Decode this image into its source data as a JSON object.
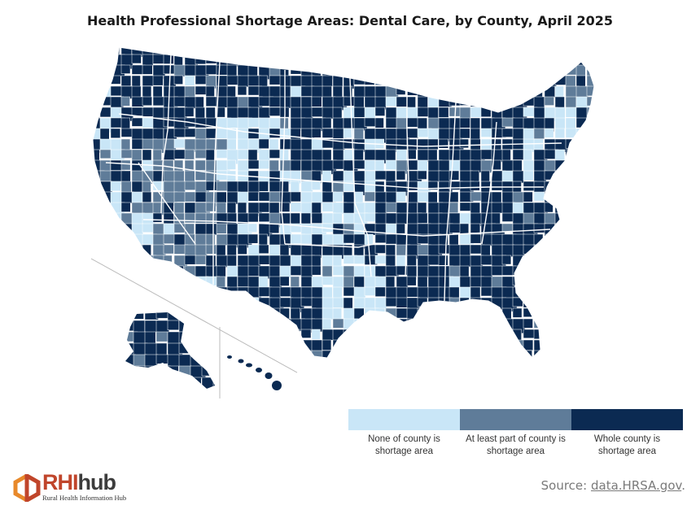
{
  "title": "Health Professional Shortage Areas: Dental Care, by County, April 2025",
  "legend": [
    {
      "label_line1": "None of county is",
      "label_line2": "shortage area",
      "color": "#c9e6f7"
    },
    {
      "label_line1": "At least part of county is",
      "label_line2": "shortage area",
      "color": "#5f7c99"
    },
    {
      "label_line1": "Whole county is",
      "label_line2": "shortage area",
      "color": "#0b2a52"
    }
  ],
  "colors": {
    "none": "#c9e6f7",
    "partial": "#5f7c99",
    "whole": "#0b2a52",
    "border": "#ffffff",
    "inset_line": "#bbbbbb"
  },
  "source": {
    "prefix": "Source: ",
    "link": "data.HRSA.gov",
    "suffix": "."
  },
  "logo": {
    "word_rhi": "RHI",
    "word_hub": "hub",
    "subtitle": "Rural Health Information Hub"
  }
}
